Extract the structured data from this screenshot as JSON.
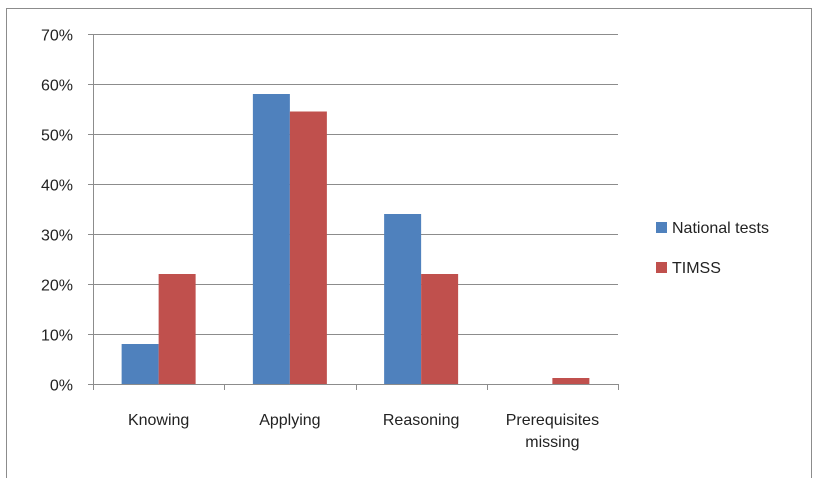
{
  "chart_data": {
    "type": "bar",
    "categories": [
      "Knowing",
      "Applying",
      "Reasoning",
      "Prerequisites missing"
    ],
    "category_label_lines": [
      [
        "Knowing"
      ],
      [
        "Applying"
      ],
      [
        "Reasoning"
      ],
      [
        "Prerequisites",
        "missing"
      ]
    ],
    "series": [
      {
        "name": "National tests",
        "color": "#4f81bd",
        "values": [
          0.08,
          0.58,
          0.34,
          0.0
        ]
      },
      {
        "name": "TIMSS",
        "color": "#c0504d",
        "values": [
          0.22,
          0.545,
          0.22,
          0.012
        ]
      }
    ],
    "y_ticks": [
      "0%",
      "10%",
      "20%",
      "30%",
      "40%",
      "50%",
      "60%",
      "70%"
    ],
    "ylim": [
      0,
      0.7
    ],
    "grid": true,
    "legend_position": "right"
  }
}
